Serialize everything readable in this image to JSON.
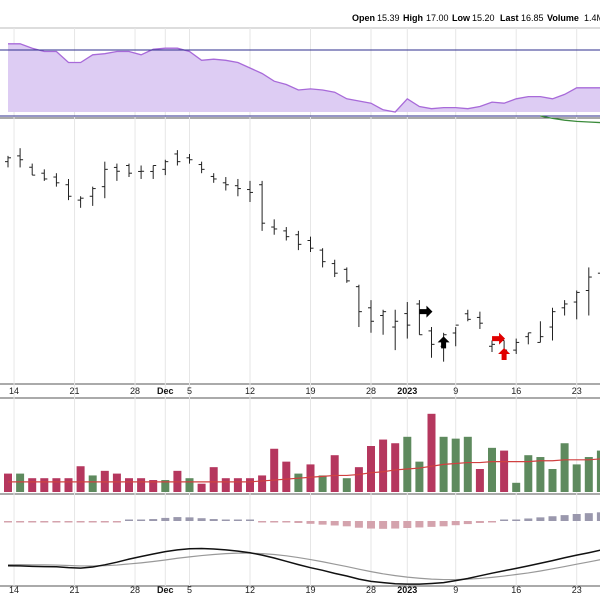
{
  "header": {
    "open_label": "Open",
    "open_value": "15.39",
    "high_label": "High",
    "high_value": "17.00",
    "low_label": "Low",
    "low_value": "15.20",
    "last_label": "Last",
    "last_value": "16.85",
    "volume_label": "Volume",
    "volume_value": "1.4M"
  },
  "chart_data": [
    {
      "type": "area",
      "panel": "relative-strength",
      "x": [
        0,
        1,
        2,
        3,
        4,
        5,
        6,
        7,
        8,
        9,
        10,
        11,
        12,
        13,
        14,
        15,
        16,
        17,
        18,
        19,
        20,
        21,
        22,
        23,
        24,
        25,
        26,
        27,
        28,
        29,
        30,
        31,
        32,
        33,
        34,
        35,
        36,
        37,
        38,
        39,
        40,
        41,
        42,
        43,
        44,
        45,
        46,
        47,
        48,
        49
      ],
      "values": [
        0.62,
        0.62,
        0.58,
        0.55,
        0.55,
        0.45,
        0.45,
        0.52,
        0.53,
        0.55,
        0.55,
        0.52,
        0.57,
        0.58,
        0.58,
        0.55,
        0.47,
        0.48,
        0.47,
        0.45,
        0.4,
        0.35,
        0.28,
        0.25,
        0.2,
        0.21,
        0.2,
        0.18,
        0.12,
        0.1,
        0.08,
        0.02,
        0.0,
        0.12,
        0.05,
        0.03,
        0.04,
        0.04,
        0.03,
        0.05,
        0.09,
        0.08,
        0.12,
        0.14,
        0.14,
        0.12,
        0.16,
        0.22,
        0.22,
        0.22
      ],
      "overlay_line": [
        null,
        null,
        null,
        null,
        null,
        null,
        null,
        null,
        null,
        null,
        null,
        null,
        null,
        null,
        null,
        null,
        null,
        null,
        null,
        null,
        null,
        null,
        null,
        null,
        null,
        null,
        null,
        null,
        null,
        null,
        null,
        null,
        null,
        null,
        null,
        null,
        null,
        null,
        null,
        null,
        null,
        null,
        null,
        null,
        0.0,
        -0.04,
        -0.07,
        -0.09,
        -0.1,
        -0.11
      ],
      "colors": {
        "fill": "#ddccf3",
        "line": "#a86ad9",
        "overlay": "#3a8a3a",
        "border": "#2e2e8c"
      }
    },
    {
      "type": "bar",
      "subtype": "ohlc",
      "panel": "price",
      "x": [
        0,
        1,
        2,
        3,
        4,
        5,
        6,
        7,
        8,
        9,
        10,
        11,
        12,
        13,
        14,
        15,
        16,
        17,
        18,
        19,
        20,
        21,
        22,
        23,
        24,
        25,
        26,
        27,
        28,
        29,
        30,
        31,
        32,
        33,
        34,
        35,
        36,
        37,
        38,
        39,
        40,
        41,
        42,
        43,
        44,
        45,
        46,
        47,
        48,
        49
      ],
      "open": [
        21.25,
        21.55,
        20.96,
        20.65,
        20.45,
        20.05,
        19.25,
        19.45,
        19.95,
        20.95,
        21.05,
        20.74,
        20.74,
        20.85,
        21.65,
        21.45,
        21.1,
        20.48,
        20.15,
        20.0,
        19.8,
        20.05,
        17.85,
        17.65,
        17.45,
        17.15,
        16.65,
        15.95,
        15.65,
        14.75,
        13.65,
        13.25,
        12.65,
        13.35,
        13.85,
        12.45,
        11.65,
        12.34,
        13.34,
        13.15,
        11.65,
        11.95,
        11.45,
        12.15,
        11.85,
        12.65,
        13.65,
        13.95,
        14.55,
        15.45
      ],
      "high": [
        21.55,
        21.95,
        21.15,
        20.85,
        20.65,
        20.35,
        19.45,
        19.95,
        21.25,
        21.15,
        21.15,
        21.05,
        21.05,
        21.35,
        21.85,
        21.65,
        21.25,
        20.65,
        20.45,
        20.35,
        20.25,
        20.25,
        18.25,
        17.85,
        17.65,
        17.35,
        16.75,
        16.15,
        15.75,
        14.85,
        14.05,
        13.55,
        13.55,
        13.95,
        14.05,
        12.65,
        12.35,
        12.65,
        13.55,
        13.45,
        11.95,
        11.95,
        12.05,
        12.35,
        12.95,
        13.65,
        14.05,
        14.55,
        15.75,
        15.95
      ],
      "low": [
        20.95,
        20.95,
        20.55,
        20.25,
        19.95,
        19.25,
        18.85,
        18.95,
        19.35,
        20.25,
        20.45,
        20.35,
        20.35,
        20.55,
        21.05,
        21.15,
        20.65,
        20.15,
        19.75,
        19.45,
        19.15,
        17.65,
        17.45,
        17.15,
        16.65,
        16.55,
        15.75,
        15.25,
        14.95,
        12.65,
        12.35,
        12.25,
        11.45,
        12.05,
        12.25,
        11.05,
        10.85,
        11.65,
        12.95,
        12.55,
        11.35,
        11.05,
        11.25,
        11.75,
        11.85,
        11.95,
        13.25,
        13.05,
        13.25,
        14.65
      ],
      "close": [
        21.45,
        21.35,
        20.55,
        20.35,
        20.15,
        19.45,
        19.35,
        19.85,
        20.85,
        20.75,
        20.65,
        20.75,
        21.05,
        21.25,
        21.25,
        21.35,
        20.85,
        20.35,
        20.05,
        19.85,
        19.65,
        18.05,
        17.75,
        17.35,
        16.95,
        16.75,
        16.05,
        15.45,
        15.05,
        13.45,
        12.95,
        13.45,
        12.95,
        12.75,
        12.25,
        11.75,
        12.25,
        12.75,
        13.05,
        12.85,
        11.75,
        11.45,
        11.85,
        12.35,
        12.15,
        13.45,
        13.85,
        14.45,
        15.25,
        15.85
      ],
      "ylim": [
        10,
        23
      ],
      "markers": [
        {
          "type": "right-arrow",
          "x": 34.5,
          "y": 13.45,
          "color": "#000000"
        },
        {
          "type": "up-arrow",
          "x": 36.0,
          "y": 11.85,
          "color": "#000000"
        },
        {
          "type": "right-arrow",
          "x": 40.5,
          "y": 12.05,
          "color": "#e00000"
        },
        {
          "type": "up-arrow",
          "x": 41.0,
          "y": 11.25,
          "color": "#e00000"
        }
      ]
    },
    {
      "type": "bar",
      "panel": "volume",
      "x": [
        0,
        1,
        2,
        3,
        4,
        5,
        6,
        7,
        8,
        9,
        10,
        11,
        12,
        13,
        14,
        15,
        16,
        17,
        18,
        19,
        20,
        21,
        22,
        23,
        24,
        25,
        26,
        27,
        28,
        29,
        30,
        31,
        32,
        33,
        34,
        35,
        36,
        37,
        38,
        39,
        40,
        41,
        42,
        43,
        44,
        45,
        46,
        47,
        48,
        49
      ],
      "values": [
        20,
        20,
        15,
        15,
        15,
        15,
        28,
        18,
        23,
        20,
        15,
        15,
        13,
        13,
        23,
        15,
        9,
        27,
        15,
        15,
        15,
        18,
        47,
        33,
        20,
        30,
        18,
        40,
        15,
        27,
        50,
        57,
        53,
        60,
        33,
        85,
        60,
        58,
        60,
        25,
        48,
        45,
        10,
        40,
        38,
        25,
        53,
        30,
        38,
        45
      ],
      "directions": [
        "down",
        "up",
        "down",
        "down",
        "down",
        "down",
        "down",
        "up",
        "down",
        "down",
        "down",
        "down",
        "down",
        "up",
        "down",
        "up",
        "down",
        "down",
        "down",
        "down",
        "down",
        "down",
        "down",
        "down",
        "up",
        "down",
        "up",
        "down",
        "up",
        "down",
        "down",
        "down",
        "down",
        "up",
        "up",
        "down",
        "up",
        "up",
        "up",
        "down",
        "up",
        "down",
        "up",
        "up",
        "up",
        "up",
        "up",
        "up",
        "up",
        "up"
      ],
      "moving_average": [
        11,
        11,
        11,
        11,
        11,
        11,
        11,
        11,
        11,
        11,
        11,
        11,
        11,
        11,
        11,
        11,
        11,
        11,
        11,
        11,
        11,
        12,
        13,
        14,
        15,
        16,
        17,
        18,
        18,
        19,
        21,
        22,
        24,
        25,
        26,
        28,
        30,
        31,
        32,
        32,
        33,
        33,
        33,
        33,
        34,
        34,
        35,
        35,
        35,
        36
      ],
      "ylim": [
        0,
        100
      ],
      "colors": {
        "up": "#5e8a5e",
        "down": "#b5375e",
        "ma": "#d04040"
      }
    },
    {
      "type": "bar",
      "panel": "macd-histogram",
      "x": [
        0,
        1,
        2,
        3,
        4,
        5,
        6,
        7,
        8,
        9,
        10,
        11,
        12,
        13,
        14,
        15,
        16,
        17,
        18,
        19,
        20,
        21,
        22,
        23,
        24,
        25,
        26,
        27,
        28,
        29,
        30,
        31,
        32,
        33,
        34,
        35,
        36,
        37,
        38,
        39,
        40,
        41,
        42,
        43,
        44,
        45,
        46,
        47,
        48,
        49
      ],
      "values": [
        -0.08,
        -0.08,
        -0.08,
        -0.08,
        -0.08,
        -0.1,
        -0.1,
        -0.08,
        -0.06,
        -0.03,
        0.02,
        0.08,
        0.14,
        0.22,
        0.28,
        0.26,
        0.2,
        0.14,
        0.1,
        0.06,
        0.03,
        -0.02,
        -0.06,
        -0.08,
        -0.14,
        -0.2,
        -0.26,
        -0.32,
        -0.38,
        -0.48,
        -0.54,
        -0.56,
        -0.54,
        -0.5,
        -0.46,
        -0.42,
        -0.38,
        -0.3,
        -0.22,
        -0.14,
        -0.06,
        0.02,
        0.1,
        0.18,
        0.26,
        0.34,
        0.42,
        0.5,
        0.56,
        0.62
      ],
      "lines": {
        "macd": [
          -0.35,
          -0.36,
          -0.38,
          -0.39,
          -0.4,
          -0.44,
          -0.46,
          -0.41,
          -0.31,
          -0.19,
          -0.05,
          0.07,
          0.18,
          0.29,
          0.37,
          0.42,
          0.43,
          0.41,
          0.37,
          0.31,
          0.24,
          0.13,
          0.0,
          -0.15,
          -0.3,
          -0.44,
          -0.56,
          -0.7,
          -0.82,
          -0.96,
          -1.06,
          -1.12,
          -1.17,
          -1.19,
          -1.19,
          -1.16,
          -1.12,
          -1.03,
          -0.93,
          -0.81,
          -0.69,
          -0.58,
          -0.47,
          -0.36,
          -0.24,
          -0.12,
          0.01,
          0.13,
          0.24,
          0.36
        ],
        "signal": [
          -0.3,
          -0.3,
          -0.31,
          -0.31,
          -0.32,
          -0.34,
          -0.36,
          -0.36,
          -0.35,
          -0.32,
          -0.27,
          -0.22,
          -0.16,
          -0.09,
          -0.01,
          0.05,
          0.11,
          0.16,
          0.2,
          0.22,
          0.22,
          0.2,
          0.16,
          0.1,
          0.02,
          -0.07,
          -0.17,
          -0.28,
          -0.39,
          -0.51,
          -0.62,
          -0.72,
          -0.8,
          -0.87,
          -0.92,
          -0.96,
          -0.98,
          -0.98,
          -0.96,
          -0.93,
          -0.88,
          -0.82,
          -0.75,
          -0.68,
          -0.59,
          -0.49,
          -0.39,
          -0.28,
          -0.18,
          -0.07
        ]
      },
      "colors": {
        "pos": "#9a98ad",
        "neg": "#d4a3ad",
        "macd": "#111111",
        "signal": "#999999"
      }
    }
  ],
  "x_axis": {
    "ticks": [
      {
        "index": 0.5,
        "label": "14"
      },
      {
        "index": 5.5,
        "label": "21"
      },
      {
        "index": 10.5,
        "label": "28"
      },
      {
        "index": 13.0,
        "label": "Dec"
      },
      {
        "index": 15.0,
        "label": "5"
      },
      {
        "index": 20.0,
        "label": "12"
      },
      {
        "index": 25.0,
        "label": "19"
      },
      {
        "index": 30.0,
        "label": "28"
      },
      {
        "index": 33.0,
        "label": "2023"
      },
      {
        "index": 37.0,
        "label": "9"
      },
      {
        "index": 42.0,
        "label": "16"
      },
      {
        "index": 47.0,
        "label": "23"
      }
    ],
    "bold_labels": [
      "Dec",
      "2023"
    ]
  }
}
